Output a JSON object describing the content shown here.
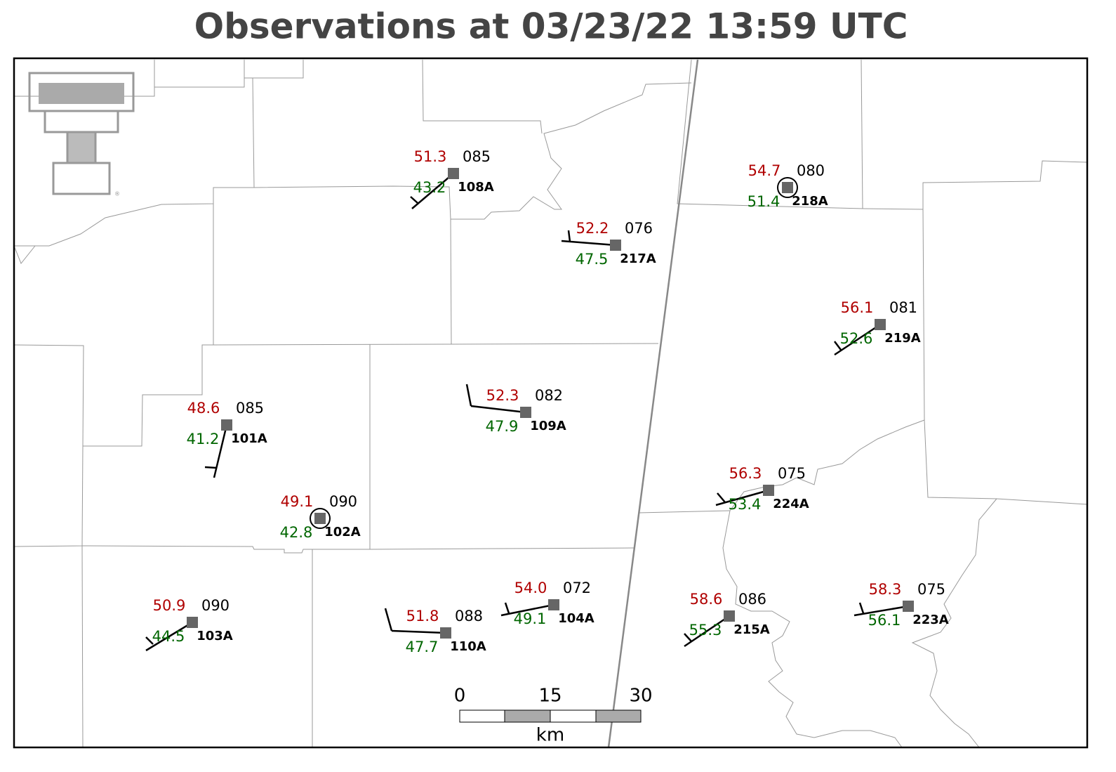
{
  "title": "Observations at 03/23/22 13:59 UTC",
  "stations": [
    {
      "id": "108A",
      "temperature": "51.3",
      "dewpoint": "43.2",
      "pressure": "085"
    },
    {
      "id": "217A",
      "temperature": "52.2",
      "dewpoint": "47.5",
      "pressure": "076"
    },
    {
      "id": "218A",
      "temperature": "54.7",
      "dewpoint": "51.4",
      "pressure": "080"
    },
    {
      "id": "219A",
      "temperature": "56.1",
      "dewpoint": "52.6",
      "pressure": "081"
    },
    {
      "id": "101A",
      "temperature": "48.6",
      "dewpoint": "41.2",
      "pressure": "085"
    },
    {
      "id": "109A",
      "temperature": "52.3",
      "dewpoint": "47.9",
      "pressure": "082"
    },
    {
      "id": "102A",
      "temperature": "49.1",
      "dewpoint": "42.8",
      "pressure": "090"
    },
    {
      "id": "224A",
      "temperature": "56.3",
      "dewpoint": "53.4",
      "pressure": "075"
    },
    {
      "id": "103A",
      "temperature": "50.9",
      "dewpoint": "44.5",
      "pressure": "090"
    },
    {
      "id": "110A",
      "temperature": "51.8",
      "dewpoint": "47.7",
      "pressure": "088"
    },
    {
      "id": "104A",
      "temperature": "54.0",
      "dewpoint": "49.1",
      "pressure": "072"
    },
    {
      "id": "215A",
      "temperature": "58.6",
      "dewpoint": "55.3",
      "pressure": "086"
    },
    {
      "id": "223A",
      "temperature": "58.3",
      "dewpoint": "56.1",
      "pressure": "075"
    }
  ],
  "scale_bar": {
    "ticks": [
      "0",
      "15",
      "30"
    ],
    "unit": "km"
  }
}
